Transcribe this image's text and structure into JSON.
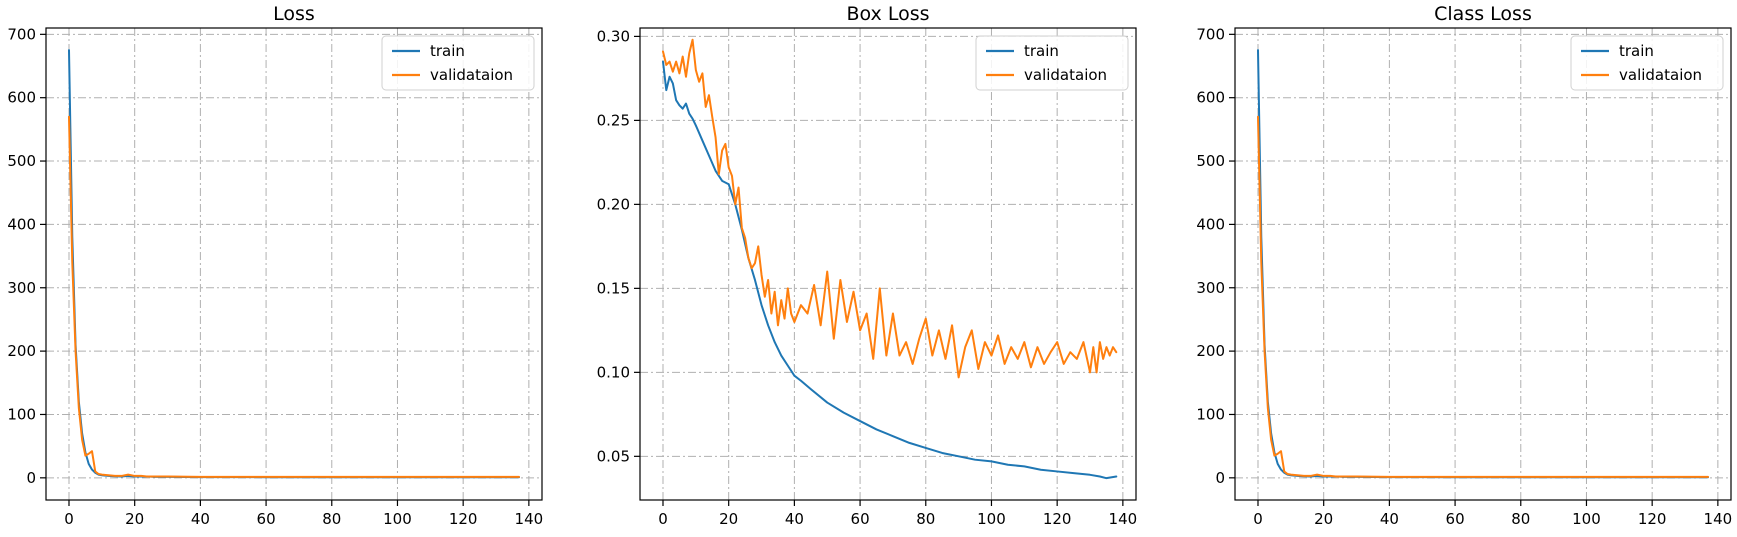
{
  "chart_data": [
    {
      "type": "line",
      "title": "Loss",
      "xlim": [
        -7,
        144
      ],
      "ylim": [
        -35,
        710
      ],
      "x_ticks": [
        0,
        20,
        40,
        60,
        80,
        100,
        120,
        140
      ],
      "y_ticks": [
        0,
        100,
        200,
        300,
        400,
        500,
        600,
        700
      ],
      "y_tick_decimals": 0,
      "grid": true,
      "legend_position": "upper right",
      "series": [
        {
          "name": "train",
          "color": "#1f77b4",
          "x": [
            0,
            1,
            2,
            3,
            4,
            5,
            6,
            7,
            8,
            9,
            10,
            12,
            14,
            16,
            18,
            20,
            22,
            24,
            26,
            28,
            30,
            40,
            50,
            60,
            70,
            80,
            90,
            100,
            110,
            120,
            130,
            137
          ],
          "values": [
            675,
            380,
            210,
            120,
            70,
            40,
            22,
            13,
            8,
            5,
            4,
            3,
            2.5,
            2,
            3,
            2,
            2,
            2,
            1.5,
            1.5,
            1.5,
            1.2,
            1.1,
            1,
            1,
            1,
            1,
            1,
            1,
            1,
            1,
            1
          ]
        },
        {
          "name": "validataion",
          "color": "#ff7f0e",
          "x": [
            0,
            1,
            2,
            3,
            4,
            5,
            6,
            7,
            8,
            9,
            10,
            12,
            14,
            16,
            18,
            20,
            22,
            24,
            26,
            28,
            30,
            40,
            50,
            60,
            70,
            80,
            90,
            100,
            110,
            120,
            130,
            137
          ],
          "values": [
            570,
            340,
            200,
            110,
            60,
            35,
            38,
            42,
            10,
            6,
            5,
            4,
            3,
            3,
            5,
            3,
            3,
            2,
            2,
            2,
            2,
            1.5,
            1.5,
            1.5,
            1.5,
            1.5,
            1.5,
            1.5,
            1.5,
            1.5,
            1.5,
            1.5
          ]
        }
      ]
    },
    {
      "type": "line",
      "title": "Box Loss",
      "xlim": [
        -7,
        144
      ],
      "ylim": [
        0.024,
        0.305
      ],
      "x_ticks": [
        0,
        20,
        40,
        60,
        80,
        100,
        120,
        140
      ],
      "y_ticks": [
        0.05,
        0.1,
        0.15,
        0.2,
        0.25,
        0.3
      ],
      "y_tick_decimals": 2,
      "grid": true,
      "legend_position": "upper right",
      "series": [
        {
          "name": "train",
          "color": "#1f77b4",
          "x": [
            0,
            1,
            2,
            3,
            4,
            5,
            6,
            7,
            8,
            9,
            10,
            12,
            14,
            16,
            18,
            20,
            22,
            24,
            26,
            28,
            30,
            32,
            34,
            36,
            38,
            40,
            42,
            45,
            50,
            55,
            60,
            65,
            70,
            75,
            80,
            85,
            90,
            95,
            100,
            105,
            110,
            115,
            120,
            125,
            130,
            133,
            135,
            138
          ],
          "values": [
            0.285,
            0.268,
            0.276,
            0.272,
            0.262,
            0.259,
            0.257,
            0.26,
            0.254,
            0.251,
            0.247,
            0.238,
            0.229,
            0.22,
            0.214,
            0.212,
            0.2,
            0.185,
            0.168,
            0.155,
            0.14,
            0.128,
            0.118,
            0.11,
            0.104,
            0.098,
            0.095,
            0.09,
            0.082,
            0.076,
            0.071,
            0.066,
            0.062,
            0.058,
            0.055,
            0.052,
            0.05,
            0.048,
            0.047,
            0.045,
            0.044,
            0.042,
            0.041,
            0.04,
            0.039,
            0.038,
            0.037,
            0.038
          ]
        },
        {
          "name": "validataion",
          "color": "#ff7f0e",
          "x": [
            0,
            1,
            2,
            3,
            4,
            5,
            6,
            7,
            8,
            9,
            10,
            11,
            12,
            13,
            14,
            15,
            16,
            17,
            18,
            19,
            20,
            21,
            22,
            23,
            24,
            25,
            26,
            27,
            28,
            29,
            30,
            31,
            32,
            33,
            34,
            35,
            36,
            37,
            38,
            39,
            40,
            42,
            44,
            46,
            48,
            50,
            52,
            54,
            56,
            58,
            60,
            62,
            64,
            66,
            68,
            70,
            72,
            74,
            76,
            78,
            80,
            82,
            84,
            86,
            88,
            90,
            92,
            94,
            96,
            98,
            100,
            102,
            104,
            106,
            108,
            110,
            112,
            114,
            116,
            118,
            120,
            122,
            124,
            126,
            128,
            130,
            131,
            132,
            133,
            134,
            135,
            136,
            137,
            138
          ],
          "values": [
            0.291,
            0.283,
            0.285,
            0.279,
            0.285,
            0.278,
            0.288,
            0.276,
            0.29,
            0.298,
            0.28,
            0.273,
            0.278,
            0.258,
            0.265,
            0.252,
            0.24,
            0.218,
            0.232,
            0.236,
            0.222,
            0.217,
            0.2,
            0.21,
            0.186,
            0.18,
            0.168,
            0.162,
            0.165,
            0.175,
            0.158,
            0.145,
            0.155,
            0.135,
            0.148,
            0.128,
            0.143,
            0.132,
            0.15,
            0.135,
            0.13,
            0.14,
            0.135,
            0.152,
            0.128,
            0.16,
            0.12,
            0.155,
            0.13,
            0.148,
            0.125,
            0.135,
            0.108,
            0.15,
            0.11,
            0.135,
            0.11,
            0.118,
            0.105,
            0.12,
            0.132,
            0.11,
            0.125,
            0.108,
            0.128,
            0.097,
            0.115,
            0.125,
            0.102,
            0.118,
            0.11,
            0.122,
            0.105,
            0.115,
            0.108,
            0.118,
            0.103,
            0.115,
            0.105,
            0.112,
            0.118,
            0.105,
            0.112,
            0.108,
            0.118,
            0.1,
            0.115,
            0.1,
            0.118,
            0.108,
            0.115,
            0.11,
            0.115,
            0.112
          ]
        }
      ]
    },
    {
      "type": "line",
      "title": "Class Loss",
      "xlim": [
        -7,
        144
      ],
      "ylim": [
        -35,
        710
      ],
      "x_ticks": [
        0,
        20,
        40,
        60,
        80,
        100,
        120,
        140
      ],
      "y_ticks": [
        0,
        100,
        200,
        300,
        400,
        500,
        600,
        700
      ],
      "y_tick_decimals": 0,
      "grid": true,
      "legend_position": "upper right",
      "series": [
        {
          "name": "train",
          "color": "#1f77b4",
          "x": [
            0,
            1,
            2,
            3,
            4,
            5,
            6,
            7,
            8,
            9,
            10,
            12,
            14,
            16,
            18,
            20,
            22,
            24,
            26,
            28,
            30,
            40,
            50,
            60,
            70,
            80,
            90,
            100,
            110,
            120,
            130,
            137
          ],
          "values": [
            675,
            380,
            210,
            120,
            70,
            40,
            22,
            13,
            8,
            5,
            4,
            3,
            2.5,
            2,
            3,
            2,
            2,
            2,
            1.5,
            1.5,
            1.5,
            1.2,
            1.1,
            1,
            1,
            1,
            1,
            1,
            1,
            1,
            1,
            1
          ]
        },
        {
          "name": "validataion",
          "color": "#ff7f0e",
          "x": [
            0,
            1,
            2,
            3,
            4,
            5,
            6,
            7,
            8,
            9,
            10,
            12,
            14,
            16,
            18,
            20,
            22,
            24,
            26,
            28,
            30,
            40,
            50,
            60,
            70,
            80,
            90,
            100,
            110,
            120,
            130,
            137
          ],
          "values": [
            570,
            340,
            200,
            110,
            60,
            35,
            38,
            42,
            10,
            6,
            5,
            4,
            3,
            3,
            5,
            3,
            3,
            2,
            2,
            2,
            2,
            1.5,
            1.5,
            1.5,
            1.5,
            1.5,
            1.5,
            1.5,
            1.5,
            1.5,
            1.5,
            1.5
          ]
        }
      ]
    }
  ]
}
